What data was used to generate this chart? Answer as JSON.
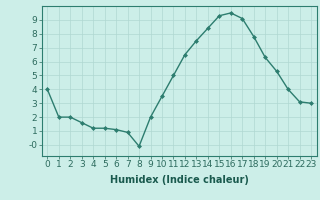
{
  "x": [
    0,
    1,
    2,
    3,
    4,
    5,
    6,
    7,
    8,
    9,
    10,
    11,
    12,
    13,
    14,
    15,
    16,
    17,
    18,
    19,
    20,
    21,
    22,
    23
  ],
  "y": [
    4.0,
    2.0,
    2.0,
    1.6,
    1.2,
    1.2,
    1.1,
    0.9,
    -0.1,
    2.0,
    3.5,
    5.0,
    6.5,
    7.5,
    8.4,
    9.3,
    9.5,
    9.1,
    7.8,
    6.3,
    5.3,
    4.0,
    3.1,
    3.0
  ],
  "line_color": "#2d7d6f",
  "marker": "D",
  "marker_size": 2.0,
  "bg_color": "#cceee8",
  "grid_color": "#b0d8d2",
  "xlabel": "Humidex (Indice chaleur)",
  "xlabel_fontsize": 7,
  "tick_fontsize": 6.5,
  "ylim": [
    -0.8,
    10.0
  ],
  "xlim": [
    -0.5,
    23.5
  ],
  "yticks": [
    0,
    1,
    2,
    3,
    4,
    5,
    6,
    7,
    8,
    9
  ],
  "ytick_labels": [
    "-0",
    "1",
    "2",
    "3",
    "4",
    "5",
    "6",
    "7",
    "8",
    "9"
  ],
  "xticks": [
    0,
    1,
    2,
    3,
    4,
    5,
    6,
    7,
    8,
    9,
    10,
    11,
    12,
    13,
    14,
    15,
    16,
    17,
    18,
    19,
    20,
    21,
    22,
    23
  ],
  "linewidth": 1.0,
  "tick_color": "#2d6b5e",
  "label_color": "#1a5a4e"
}
